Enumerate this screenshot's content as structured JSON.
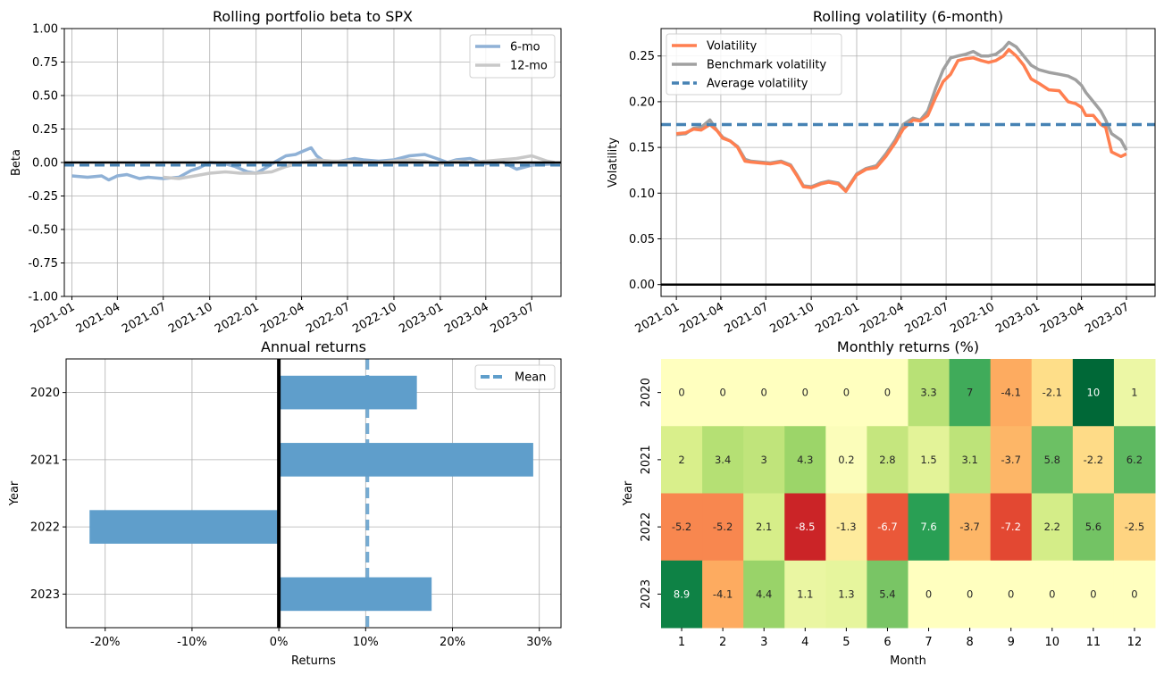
{
  "colors": {
    "beta6": "#8fb1d6",
    "beta12": "#c8c8c8",
    "beta_mean": "#4682b4",
    "vol": "#ff7f50",
    "vol_bench": "#a0a0a0",
    "vol_mean": "#4682b4",
    "bars": "#5f9ecb",
    "grid": "#b0b0b0",
    "zero": "#000000"
  },
  "chart_data": [
    {
      "id": "beta",
      "type": "line",
      "title": "Rolling portfolio beta to SPX",
      "xlabel": "",
      "ylabel": "Beta",
      "xlim": [
        "2020-12-17",
        "2023-08-28"
      ],
      "ylim": [
        -1.0,
        1.0
      ],
      "grid": true,
      "legend_position": "top-right",
      "x_ticks": [
        "2021-01",
        "2021-04",
        "2021-07",
        "2021-10",
        "2022-01",
        "2022-04",
        "2022-07",
        "2022-10",
        "2023-01",
        "2023-04",
        "2023-07"
      ],
      "y_ticks": [
        "1.00",
        "0.75",
        "0.50",
        "0.25",
        "0.00",
        "-0.25",
        "-0.50",
        "-0.75",
        "-1.00"
      ],
      "y_tick_values": [
        1.0,
        0.75,
        0.5,
        0.25,
        0.0,
        -0.25,
        -0.5,
        -0.75,
        -1.0
      ],
      "mean_line": -0.02,
      "series": [
        {
          "name": "6-mo",
          "x": [
            "2021-01-01",
            "2021-02-01",
            "2021-03-01",
            "2021-03-15",
            "2021-04-01",
            "2021-04-20",
            "2021-05-15",
            "2021-06-01",
            "2021-07-01",
            "2021-08-01",
            "2021-08-25",
            "2021-09-10",
            "2021-10-01",
            "2021-11-01",
            "2021-11-20",
            "2021-12-15",
            "2022-01-01",
            "2022-01-20",
            "2022-02-10",
            "2022-03-01",
            "2022-03-20",
            "2022-04-01",
            "2022-04-20",
            "2022-05-01",
            "2022-05-15",
            "2022-06-01",
            "2022-07-01",
            "2022-07-15",
            "2022-08-01",
            "2022-09-01",
            "2022-10-01",
            "2022-11-01",
            "2022-12-01",
            "2023-01-01",
            "2023-01-15",
            "2023-02-01",
            "2023-03-01",
            "2023-04-01",
            "2023-04-20",
            "2023-05-01",
            "2023-06-01",
            "2023-07-01",
            "2023-08-15"
          ],
          "values": [
            -0.1,
            -0.11,
            -0.1,
            -0.13,
            -0.1,
            -0.09,
            -0.12,
            -0.11,
            -0.12,
            -0.11,
            -0.06,
            -0.04,
            0.0,
            -0.01,
            -0.03,
            -0.07,
            -0.08,
            -0.04,
            0.01,
            0.05,
            0.06,
            0.08,
            0.11,
            0.05,
            0.01,
            0.0,
            0.02,
            0.03,
            0.02,
            0.01,
            0.02,
            0.05,
            0.06,
            0.02,
            0.0,
            0.02,
            0.03,
            -0.01,
            0.0,
            0.01,
            -0.05,
            -0.02,
            -0.01
          ]
        },
        {
          "name": "12-mo",
          "x": [
            "2021-07-01",
            "2021-08-01",
            "2021-09-01",
            "2021-10-01",
            "2021-11-01",
            "2021-12-01",
            "2022-01-01",
            "2022-02-01",
            "2022-03-01",
            "2022-04-01",
            "2022-05-01",
            "2022-06-01",
            "2022-07-01",
            "2022-08-01",
            "2022-09-01",
            "2022-10-01",
            "2022-11-01",
            "2022-12-01",
            "2023-01-01",
            "2023-02-01",
            "2023-03-01",
            "2023-04-01",
            "2023-05-01",
            "2023-06-01",
            "2023-07-01",
            "2023-08-01",
            "2023-08-15"
          ],
          "values": [
            -0.11,
            -0.12,
            -0.1,
            -0.08,
            -0.07,
            -0.08,
            -0.08,
            -0.07,
            -0.03,
            0.0,
            0.02,
            0.01,
            0.01,
            0.0,
            0.0,
            0.01,
            0.02,
            0.01,
            -0.01,
            0.01,
            0.0,
            0.01,
            0.02,
            0.03,
            0.05,
            0.01,
            0.0
          ]
        }
      ]
    },
    {
      "id": "vol",
      "type": "line",
      "title": "Rolling volatility (6-month)",
      "xlabel": "",
      "ylabel": "Volatility",
      "xlim": [
        "2020-12-01",
        "2023-08-28"
      ],
      "ylim": [
        -0.013,
        0.28
      ],
      "grid": true,
      "legend_position": "top-left",
      "x_ticks": [
        "2021-01",
        "2021-04",
        "2021-07",
        "2021-10",
        "2022-01",
        "2022-04",
        "2022-07",
        "2022-10",
        "2023-01",
        "2023-04",
        "2023-07"
      ],
      "y_ticks": [
        "0.25",
        "0.20",
        "0.15",
        "0.10",
        "0.05",
        "0.00"
      ],
      "y_tick_values": [
        0.25,
        0.2,
        0.15,
        0.1,
        0.05,
        0.0
      ],
      "mean_line": 0.175,
      "mean_name": "Average volatility",
      "series": [
        {
          "name": "Volatility",
          "x": [
            "2021-01-01",
            "2021-01-20",
            "2021-02-05",
            "2021-02-20",
            "2021-03-10",
            "2021-03-25",
            "2021-04-05",
            "2021-04-20",
            "2021-05-05",
            "2021-05-20",
            "2021-06-01",
            "2021-06-20",
            "2021-07-10",
            "2021-08-01",
            "2021-08-20",
            "2021-09-01",
            "2021-09-15",
            "2021-10-01",
            "2021-10-20",
            "2021-11-05",
            "2021-11-25",
            "2021-12-10",
            "2022-01-01",
            "2022-01-20",
            "2022-02-10",
            "2022-03-01",
            "2022-03-20",
            "2022-04-05",
            "2022-04-25",
            "2022-05-10",
            "2022-05-25",
            "2022-06-10",
            "2022-06-25",
            "2022-07-10",
            "2022-07-25",
            "2022-08-10",
            "2022-08-25",
            "2022-09-10",
            "2022-09-25",
            "2022-10-10",
            "2022-10-25",
            "2022-11-05",
            "2022-11-20",
            "2022-12-05",
            "2022-12-20",
            "2023-01-05",
            "2023-01-25",
            "2023-02-15",
            "2023-03-05",
            "2023-03-20",
            "2023-04-01",
            "2023-04-10",
            "2023-04-25",
            "2023-05-10",
            "2023-05-20",
            "2023-06-01",
            "2023-06-20",
            "2023-07-01"
          ],
          "values": [
            0.165,
            0.166,
            0.17,
            0.169,
            0.175,
            0.168,
            0.16,
            0.157,
            0.15,
            0.135,
            0.134,
            0.133,
            0.132,
            0.134,
            0.13,
            0.12,
            0.107,
            0.106,
            0.11,
            0.112,
            0.11,
            0.102,
            0.12,
            0.126,
            0.128,
            0.14,
            0.155,
            0.17,
            0.18,
            0.179,
            0.185,
            0.205,
            0.222,
            0.23,
            0.245,
            0.247,
            0.248,
            0.245,
            0.243,
            0.245,
            0.25,
            0.257,
            0.25,
            0.24,
            0.225,
            0.22,
            0.213,
            0.212,
            0.2,
            0.198,
            0.194,
            0.185,
            0.185,
            0.175,
            0.172,
            0.145,
            0.14,
            0.143
          ]
        },
        {
          "name": "Benchmark volatility",
          "x": [
            "2021-01-01",
            "2021-01-20",
            "2021-02-05",
            "2021-02-20",
            "2021-03-10",
            "2021-03-25",
            "2021-04-05",
            "2021-04-20",
            "2021-05-05",
            "2021-05-20",
            "2021-06-01",
            "2021-06-20",
            "2021-07-10",
            "2021-08-01",
            "2021-08-20",
            "2021-09-01",
            "2021-09-15",
            "2021-10-01",
            "2021-10-20",
            "2021-11-05",
            "2021-11-25",
            "2021-12-10",
            "2022-01-01",
            "2022-01-20",
            "2022-02-10",
            "2022-03-01",
            "2022-03-20",
            "2022-04-05",
            "2022-04-25",
            "2022-05-10",
            "2022-05-25",
            "2022-06-10",
            "2022-06-25",
            "2022-07-10",
            "2022-07-25",
            "2022-08-10",
            "2022-08-25",
            "2022-09-10",
            "2022-09-25",
            "2022-10-10",
            "2022-10-25",
            "2022-11-05",
            "2022-11-20",
            "2022-12-05",
            "2022-12-20",
            "2023-01-05",
            "2023-01-25",
            "2023-02-15",
            "2023-03-05",
            "2023-03-20",
            "2023-04-01",
            "2023-04-10",
            "2023-04-25",
            "2023-05-10",
            "2023-05-20",
            "2023-06-01",
            "2023-06-20",
            "2023-07-01"
          ],
          "values": [
            0.164,
            0.165,
            0.171,
            0.172,
            0.18,
            0.168,
            0.161,
            0.157,
            0.151,
            0.137,
            0.135,
            0.134,
            0.133,
            0.135,
            0.131,
            0.121,
            0.108,
            0.107,
            0.111,
            0.113,
            0.111,
            0.103,
            0.121,
            0.127,
            0.13,
            0.143,
            0.158,
            0.175,
            0.182,
            0.18,
            0.19,
            0.215,
            0.235,
            0.248,
            0.25,
            0.252,
            0.255,
            0.25,
            0.25,
            0.252,
            0.258,
            0.265,
            0.26,
            0.25,
            0.24,
            0.235,
            0.232,
            0.23,
            0.228,
            0.224,
            0.218,
            0.21,
            0.2,
            0.19,
            0.18,
            0.165,
            0.158,
            0.147
          ]
        }
      ]
    },
    {
      "id": "annual",
      "type": "bar",
      "orientation": "horizontal",
      "title": "Annual returns",
      "xlabel": "Returns",
      "ylabel": "Year",
      "categories": [
        "2020",
        "2021",
        "2022",
        "2023"
      ],
      "values": [
        15.9,
        29.3,
        -21.8,
        17.6
      ],
      "xlim": [
        -24.5,
        32.5
      ],
      "grid": true,
      "legend_position": "top-right",
      "x_ticks": [
        "-20%",
        "-10%",
        "0%",
        "10%",
        "20%",
        "30%"
      ],
      "x_tick_values": [
        -20,
        -10,
        0,
        10,
        20,
        30
      ],
      "mean_line": 10.2,
      "mean_name": "Mean"
    },
    {
      "id": "monthly",
      "type": "heatmap",
      "title": "Monthly returns (%)",
      "xlabel": "Month",
      "ylabel": "Year",
      "columns": [
        "1",
        "2",
        "3",
        "4",
        "5",
        "6",
        "7",
        "8",
        "9",
        "10",
        "11",
        "12"
      ],
      "rows": [
        "2020",
        "2021",
        "2022",
        "2023"
      ],
      "values": [
        [
          0,
          0,
          0,
          0,
          0,
          0,
          3.3,
          7,
          -4.1,
          -2.1,
          10,
          1
        ],
        [
          2,
          3.4,
          3,
          4.3,
          0.2,
          2.8,
          1.5,
          3.1,
          -3.7,
          5.8,
          -2.2,
          6.2
        ],
        [
          -5.2,
          -5.2,
          2.1,
          -8.5,
          -1.3,
          -6.7,
          7.6,
          -3.7,
          -7.2,
          2.2,
          5.6,
          -2.5
        ],
        [
          8.9,
          -4.1,
          4.4,
          1.1,
          1.3,
          5.4,
          0,
          0,
          0,
          0,
          0,
          0
        ]
      ],
      "labels": [
        [
          "0",
          "0",
          "0",
          "0",
          "0",
          "0",
          "3.3",
          "7",
          "-4.1",
          "-2.1",
          "10",
          "1"
        ],
        [
          "2",
          "3.4",
          "3",
          "4.3",
          "0.2",
          "2.8",
          "1.5",
          "3.1",
          "-3.7",
          "5.8",
          "-2.2",
          "6.2"
        ],
        [
          "-5.2",
          "-5.2",
          "2.1",
          "-8.5",
          "-1.3",
          "-6.7",
          "7.6",
          "-3.7",
          "-7.2",
          "2.2",
          "5.6",
          "-2.5"
        ],
        [
          "8.9",
          "-4.1",
          "4.4",
          "1.1",
          "1.3",
          "5.4",
          "0",
          "0",
          "0",
          "0",
          "0",
          "0"
        ]
      ],
      "colormap": "RdYlGn",
      "color_range": [
        -10,
        10
      ]
    }
  ]
}
